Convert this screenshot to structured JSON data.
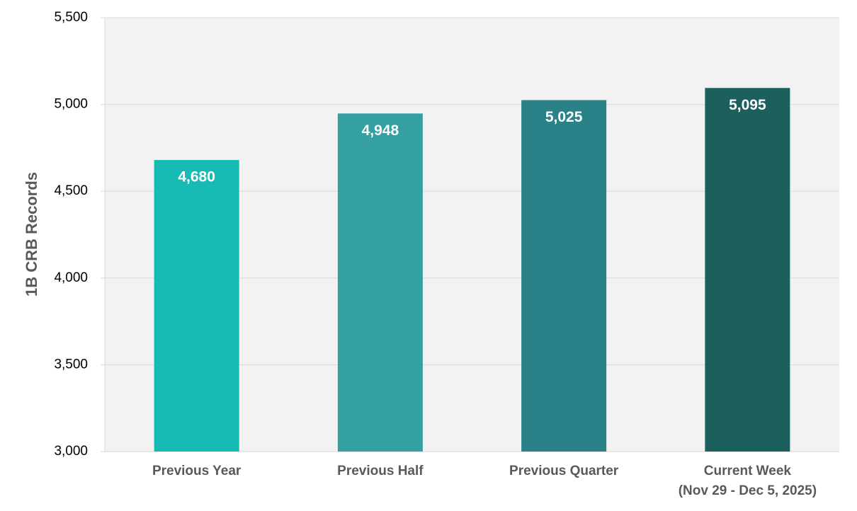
{
  "chart_data": {
    "type": "bar",
    "ylabel": "1B CRB Records",
    "categories": [
      "Previous Year",
      "Previous Half",
      "Previous Quarter",
      "Current Week\n(Nov 29 - Dec 5, 2025)"
    ],
    "values": [
      4680,
      4948,
      5025,
      5095
    ],
    "value_labels": [
      "4,680",
      "4,948",
      "5,025",
      "5,095"
    ],
    "colors": [
      "#17bbb3",
      "#34a0a2",
      "#2a8188",
      "#1c605e"
    ],
    "ylim": [
      3000,
      5500
    ],
    "yticks": [
      {
        "value": 3000,
        "label": "3,000"
      },
      {
        "value": 3500,
        "label": "3,500"
      },
      {
        "value": 4000,
        "label": "4,000"
      },
      {
        "value": 4500,
        "label": "4,500"
      },
      {
        "value": 5000,
        "label": "5,000"
      },
      {
        "value": 5500,
        "label": "5,500"
      }
    ],
    "grid": true
  }
}
